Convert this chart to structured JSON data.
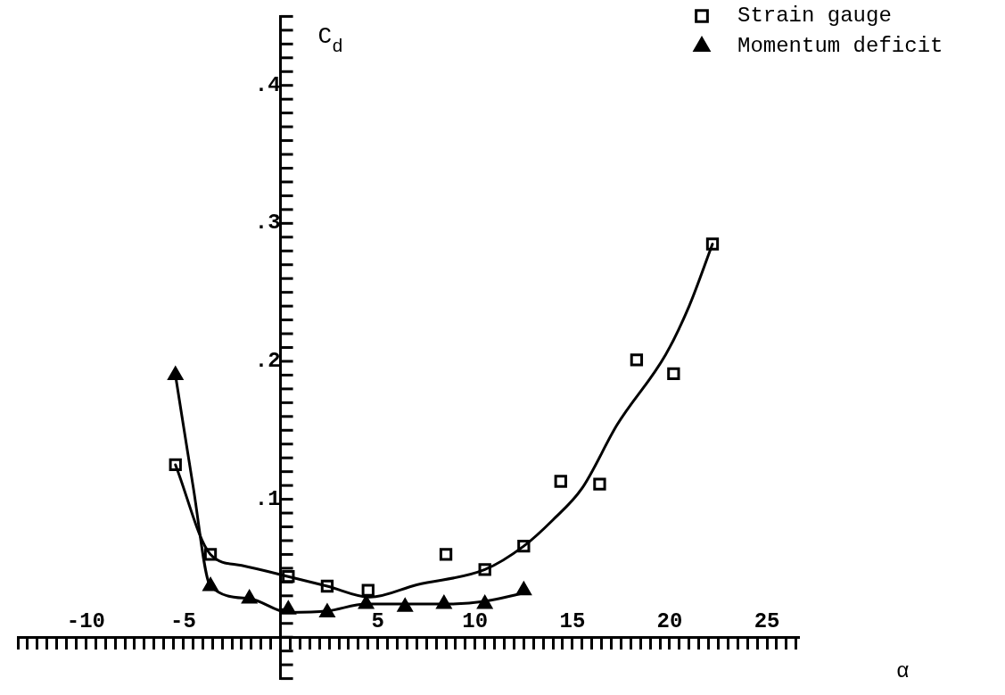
{
  "chart_data": {
    "type": "scatter",
    "xlabel": "α",
    "ylabel": "C$_{d}$",
    "legend": "top right",
    "grid": false,
    "marker": "square",
    "xlim": [
      -13.5,
      26.6
    ],
    "ylim": [
      -0.03,
      0.45
    ],
    "xticks": [
      {
        "value": -13.5,
        "label": null
      },
      {
        "value": -13,
        "label": null
      },
      {
        "value": -12.5,
        "label": null
      },
      {
        "value": -12,
        "label": null
      },
      {
        "value": -11.5,
        "label": null
      },
      {
        "value": -11,
        "label": null
      },
      {
        "value": -10.5,
        "label": null
      },
      {
        "value": -10,
        "label": "-10"
      },
      {
        "value": -9.5,
        "label": null
      },
      {
        "value": -9,
        "label": null
      },
      {
        "value": -8.5,
        "label": null
      },
      {
        "value": -8,
        "label": null
      },
      {
        "value": -7.5,
        "label": null
      },
      {
        "value": -7,
        "label": null
      },
      {
        "value": -6.5,
        "label": null
      },
      {
        "value": -6,
        "label": null
      },
      {
        "value": -5.5,
        "label": null
      },
      {
        "value": -5,
        "label": "-5"
      },
      {
        "value": -4.5,
        "label": null
      },
      {
        "value": -4,
        "label": null
      },
      {
        "value": -3.5,
        "label": null
      },
      {
        "value": -3,
        "label": null
      },
      {
        "value": -2.5,
        "label": null
      },
      {
        "value": -2,
        "label": null
      },
      {
        "value": -1.5,
        "label": null
      },
      {
        "value": -1,
        "label": null
      },
      {
        "value": -0.5,
        "label": null
      },
      {
        "value": 0,
        "label": null
      },
      {
        "value": 0.5,
        "label": null
      },
      {
        "value": 1,
        "label": null
      },
      {
        "value": 1.5,
        "label": null
      },
      {
        "value": 2,
        "label": null
      },
      {
        "value": 2.5,
        "label": null
      },
      {
        "value": 3,
        "label": null
      },
      {
        "value": 3.5,
        "label": null
      },
      {
        "value": 4,
        "label": null
      },
      {
        "value": 4.5,
        "label": null
      },
      {
        "value": 5,
        "label": "5"
      },
      {
        "value": 5.5,
        "label": null
      },
      {
        "value": 6,
        "label": null
      },
      {
        "value": 6.5,
        "label": null
      },
      {
        "value": 7,
        "label": null
      },
      {
        "value": 7.5,
        "label": null
      },
      {
        "value": 8,
        "label": null
      },
      {
        "value": 8.5,
        "label": null
      },
      {
        "value": 9,
        "label": null
      },
      {
        "value": 9.5,
        "label": null
      },
      {
        "value": 10,
        "label": "10"
      },
      {
        "value": 10.5,
        "label": null
      },
      {
        "value": 11,
        "label": null
      },
      {
        "value": 11.5,
        "label": null
      },
      {
        "value": 12,
        "label": null
      },
      {
        "value": 12.5,
        "label": null
      },
      {
        "value": 13,
        "label": null
      },
      {
        "value": 13.5,
        "label": null
      },
      {
        "value": 14,
        "label": null
      },
      {
        "value": 14.5,
        "label": null
      },
      {
        "value": 15,
        "label": "15"
      },
      {
        "value": 15.5,
        "label": null
      },
      {
        "value": 16,
        "label": null
      },
      {
        "value": 16.5,
        "label": null
      },
      {
        "value": 17,
        "label": null
      },
      {
        "value": 17.5,
        "label": null
      },
      {
        "value": 18,
        "label": null
      },
      {
        "value": 18.5,
        "label": null
      },
      {
        "value": 19,
        "label": null
      },
      {
        "value": 19.5,
        "label": null
      },
      {
        "value": 20,
        "label": "20"
      },
      {
        "value": 20.5,
        "label": null
      },
      {
        "value": 21,
        "label": null
      },
      {
        "value": 21.5,
        "label": null
      },
      {
        "value": 22,
        "label": null
      },
      {
        "value": 22.5,
        "label": null
      },
      {
        "value": 23,
        "label": null
      },
      {
        "value": 23.5,
        "label": null
      },
      {
        "value": 24,
        "label": null
      },
      {
        "value": 24.5,
        "label": null
      },
      {
        "value": 25,
        "label": "25"
      },
      {
        "value": 25.5,
        "label": null
      },
      {
        "value": 26,
        "label": null
      },
      {
        "value": 26.5,
        "label": null
      }
    ],
    "yticks": [
      {
        "value": -0.03,
        "label": null
      },
      {
        "value": -0.02,
        "label": null
      },
      {
        "value": -0.01,
        "label": null
      },
      {
        "value": 0,
        "label": null
      },
      {
        "value": 0.01,
        "label": null
      },
      {
        "value": 0.02,
        "label": null
      },
      {
        "value": 0.03,
        "label": null
      },
      {
        "value": 0.04,
        "label": null
      },
      {
        "value": 0.05,
        "label": null
      },
      {
        "value": 0.06,
        "label": null
      },
      {
        "value": 0.07,
        "label": null
      },
      {
        "value": 0.08,
        "label": null
      },
      {
        "value": 0.09,
        "label": null
      },
      {
        "value": 0.1,
        "label": ".1"
      },
      {
        "value": 0.11,
        "label": null
      },
      {
        "value": 0.12,
        "label": null
      },
      {
        "value": 0.13,
        "label": null
      },
      {
        "value": 0.14,
        "label": null
      },
      {
        "value": 0.15,
        "label": null
      },
      {
        "value": 0.16,
        "label": null
      },
      {
        "value": 0.17,
        "label": null
      },
      {
        "value": 0.18,
        "label": null
      },
      {
        "value": 0.19,
        "label": null
      },
      {
        "value": 0.2,
        "label": ".2"
      },
      {
        "value": 0.21,
        "label": null
      },
      {
        "value": 0.22,
        "label": null
      },
      {
        "value": 0.23,
        "label": null
      },
      {
        "value": 0.24,
        "label": null
      },
      {
        "value": 0.25,
        "label": null
      },
      {
        "value": 0.26,
        "label": null
      },
      {
        "value": 0.27,
        "label": null
      },
      {
        "value": 0.28,
        "label": null
      },
      {
        "value": 0.29,
        "label": null
      },
      {
        "value": 0.3,
        "label": ".3"
      },
      {
        "value": 0.31,
        "label": null
      },
      {
        "value": 0.32,
        "label": null
      },
      {
        "value": 0.33,
        "label": null
      },
      {
        "value": 0.34,
        "label": null
      },
      {
        "value": 0.35,
        "label": null
      },
      {
        "value": 0.36,
        "label": null
      },
      {
        "value": 0.37,
        "label": null
      },
      {
        "value": 0.38,
        "label": null
      },
      {
        "value": 0.39,
        "label": null
      },
      {
        "value": 0.4,
        "label": ".4"
      },
      {
        "value": 0.41,
        "label": null
      },
      {
        "value": 0.42,
        "label": null
      },
      {
        "value": 0.43,
        "label": null
      },
      {
        "value": 0.44,
        "label": null
      },
      {
        "value": 0.45,
        "label": null
      }
    ],
    "series": [
      {
        "name": "Strain gauge",
        "color": "#000000",
        "x": [
          -5.4,
          -3.6,
          0.4,
          2.4,
          4.5,
          8.5,
          10.5,
          12.5,
          14.4,
          16.4,
          18.3,
          20.2,
          22.2
        ],
        "values": [
          0.125,
          0.06,
          0.044,
          0.037,
          0.034,
          0.06,
          0.049,
          0.066,
          0.113,
          0.111,
          0.201,
          0.191,
          0.285
        ]
      },
      {
        "name": "Momentum deficit",
        "marker": "triangle",
        "color": "#000000",
        "x": [
          -5.4,
          -3.6,
          -1.6,
          0.4,
          2.4,
          4.4,
          6.4,
          8.4,
          10.5,
          12.5
        ],
        "values": [
          0.19,
          0.037,
          0.028,
          0.02,
          0.018,
          0.024,
          0.022,
          0.024,
          0.024,
          0.034
        ]
      },
      {
        "type": "line",
        "marker": "none",
        "line_style": "solid",
        "color": "#000000",
        "x": [
          -5.4,
          -3.6,
          -2,
          0.4,
          2.4,
          4.6,
          7,
          10.5,
          12.5,
          14,
          15.5,
          17.3,
          19.8,
          21,
          22.2
        ],
        "values": [
          0.125,
          0.06,
          0.052,
          0.044,
          0.037,
          0.029,
          0.038,
          0.049,
          0.066,
          0.085,
          0.108,
          0.154,
          0.205,
          0.24,
          0.285
        ]
      },
      {
        "type": "line",
        "marker": "none",
        "line_style": "solid",
        "color": "#000000",
        "x": [
          -5.4,
          -4.5,
          -3.6,
          -1.6,
          0.4,
          2.4,
          4.4,
          6.4,
          8.4,
          10.5,
          12.5
        ],
        "values": [
          0.19,
          0.11,
          0.037,
          0.028,
          0.018,
          0.019,
          0.024,
          0.024,
          0.024,
          0.026,
          0.032
        ]
      }
    ]
  }
}
